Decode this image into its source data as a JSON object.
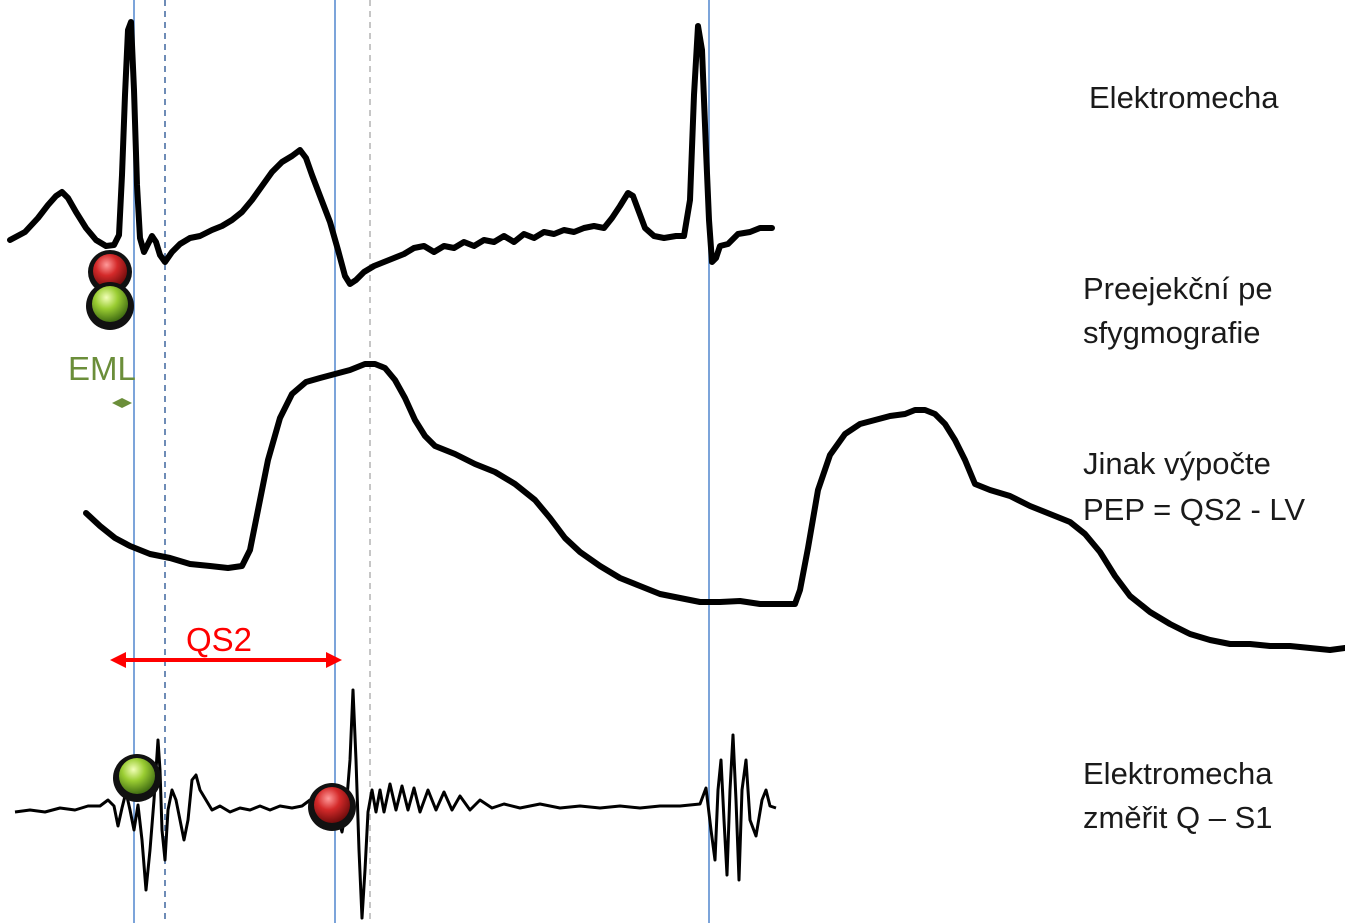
{
  "labels": {
    "eml": "EML",
    "qs2": "QS2"
  },
  "captions": [
    "Elektromecha",
    "Preejekční pe",
    "sfygmografie",
    "Jinak výpočte",
    "PEP = QS2 - LV",
    "Elektromecha",
    "změřit Q – S1"
  ],
  "colors": {
    "eml_label": "#6b8e3a",
    "qs2": "#ff0000",
    "vertical_line": "#5b8ed1",
    "marker_red": "#cc2222",
    "marker_green": "#9acd32"
  }
}
